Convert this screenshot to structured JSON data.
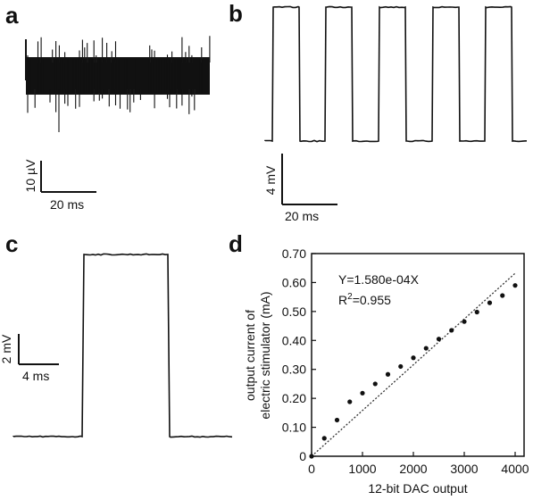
{
  "panels": {
    "a": {
      "label": "a",
      "scalebar": {
        "y_label": "10 µV",
        "x_label": "20 ms"
      }
    },
    "b": {
      "label": "b",
      "scalebar": {
        "y_label": "4 mV",
        "x_label": "20 ms"
      }
    },
    "c": {
      "label": "c",
      "scalebar": {
        "y_label": "2 mV",
        "x_label": "4 ms"
      }
    },
    "d": {
      "label": "d"
    }
  },
  "chart_data": {
    "type": "scatter",
    "title": "",
    "xlabel": "12-bit DAC output",
    "ylabel_line1": "output current of",
    "ylabel_line2": "electric stimulator (mA)",
    "xlim": [
      0,
      4000
    ],
    "ylim": [
      0,
      0.7
    ],
    "x_ticks": [
      0,
      1000,
      2000,
      3000,
      4000
    ],
    "y_ticks": [
      "0",
      "0.10",
      "0.20",
      "0.30",
      "0.40",
      "0.50",
      "0.60",
      "0.70"
    ],
    "annotation_line1": "Y=1.580e-04X",
    "annotation_r2_prefix": "R",
    "annotation_r2_sup": "2",
    "annotation_r2_value": "=0.955",
    "fit_slope": 0.000158,
    "series": [
      {
        "x": [
          0,
          250,
          500,
          750,
          1000,
          1250,
          1500,
          1750,
          2000,
          2250,
          2500,
          2750,
          3000,
          3250,
          3500,
          3750,
          4000
        ],
        "y": [
          0.0,
          0.062,
          0.125,
          0.188,
          0.218,
          0.25,
          0.283,
          0.31,
          0.34,
          0.373,
          0.405,
          0.435,
          0.465,
          0.498,
          0.53,
          0.555,
          0.59
        ]
      }
    ],
    "grid": false,
    "colors": {
      "points": "#111111",
      "fit": "#333333",
      "trace": "#111111"
    }
  }
}
